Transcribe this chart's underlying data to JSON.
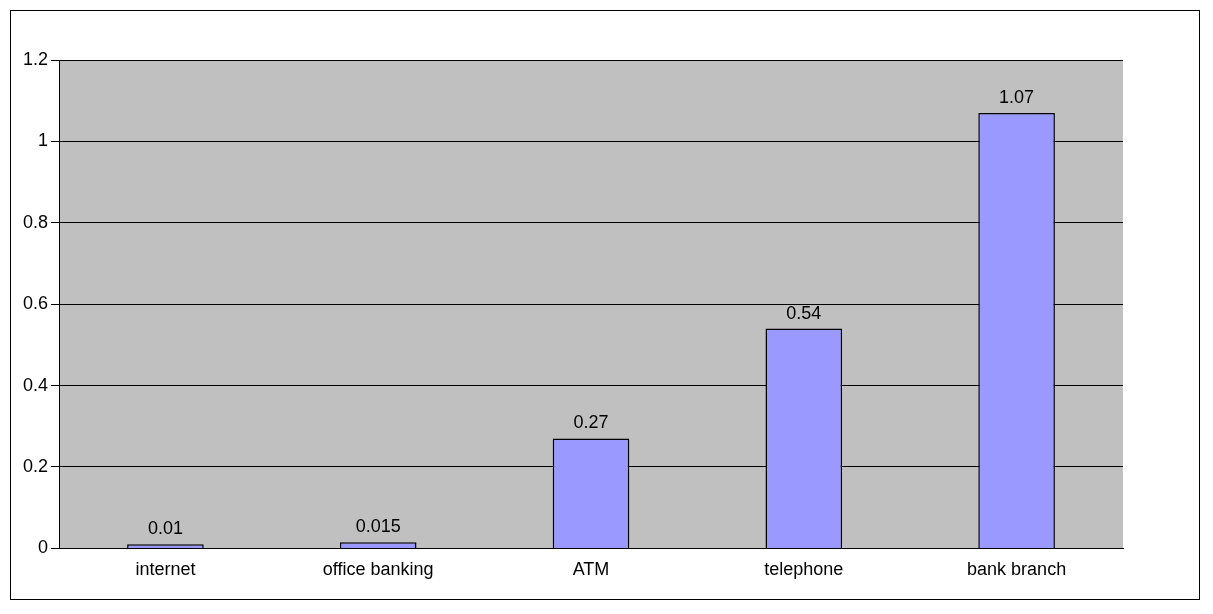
{
  "chart_data": {
    "type": "bar",
    "categories": [
      "internet",
      "office banking",
      "ATM",
      "telephone",
      "bank branch"
    ],
    "values": [
      0.01,
      0.015,
      0.27,
      0.54,
      1.07
    ],
    "color": "#9999ff",
    "ylim": [
      0,
      1.2
    ],
    "yticks": [
      0,
      0.2,
      0.4,
      0.6,
      0.8,
      1,
      1.2
    ],
    "grid": "y",
    "data_labels": true,
    "legend": false
  }
}
